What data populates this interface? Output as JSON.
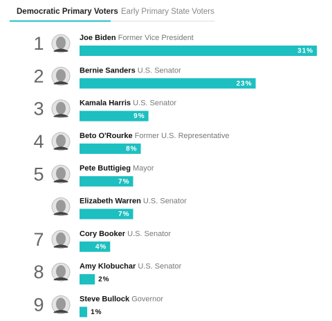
{
  "chart_data": {
    "type": "bar",
    "tabs": [
      "Democratic Primary Voters",
      "Early Primary State Voters"
    ],
    "active_tab": 0,
    "ranks": [
      1,
      2,
      3,
      4,
      5,
      null,
      7,
      8,
      9
    ],
    "categories": [
      "Joe Biden",
      "Bernie Sanders",
      "Kamala Harris",
      "Beto O'Rourke",
      "Pete Buttigieg",
      "Elizabeth Warren",
      "Cory Booker",
      "Amy Klobuchar",
      "Steve Bullock"
    ],
    "descriptions": [
      "Former Vice President",
      "U.S. Senator",
      "U.S. Senator",
      "Former U.S. Representative",
      "Mayor",
      "U.S. Senator",
      "U.S. Senator",
      "U.S. Senator",
      "Governor"
    ],
    "values": [
      31,
      23,
      9,
      8,
      7,
      7,
      4,
      2,
      1
    ],
    "value_labels": [
      "31%",
      "23%",
      "9%",
      "8%",
      "7%",
      "7%",
      "4%",
      "2%",
      "1%"
    ],
    "color": "#1dbfc0"
  }
}
